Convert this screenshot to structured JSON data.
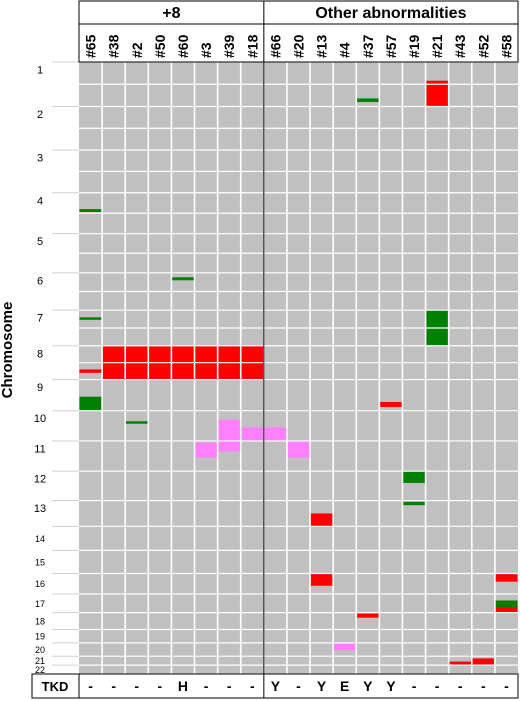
{
  "chart_data": {
    "type": "heatmap",
    "groups": [
      {
        "label": "+8",
        "samples": [
          "#65",
          "#38",
          "#2",
          "#50",
          "#60",
          "#3",
          "#39",
          "#18"
        ]
      },
      {
        "label": "Other abnormalities",
        "samples": [
          "#66",
          "#20",
          "#13",
          "#4",
          "#37",
          "#57",
          "#19",
          "#21",
          "#43",
          "#52",
          "#58"
        ]
      }
    ],
    "ylabel": "Chromosome",
    "chromosomes": [
      "1",
      "2",
      "3",
      "4",
      "5",
      "6",
      "7",
      "8",
      "9",
      "10",
      "11",
      "12",
      "13",
      "14",
      "15",
      "16",
      "17",
      "18",
      "19",
      "20",
      "21",
      "22"
    ],
    "tkd_label": "TKD",
    "tkd_values": [
      "-",
      "-",
      "-",
      "-",
      "H",
      "-",
      "-",
      "-",
      "Y",
      "-",
      "Y",
      "E",
      "Y",
      "Y",
      "-",
      "-",
      "-",
      "-",
      "-"
    ],
    "colors": {
      "background": "#c0c0c0",
      "grid": "#ffffff",
      "gain": "#ff0000",
      "loss": "#008000",
      "cn_loh": "#ff80ff"
    },
    "segments": [
      {
        "sample": "#65",
        "chr": "4",
        "from": 0.4,
        "to": 0.47,
        "type": "loss"
      },
      {
        "sample": "#65",
        "chr": "7",
        "from": 0.2,
        "to": 0.27,
        "type": "loss"
      },
      {
        "sample": "#65",
        "chr": "8",
        "from": 0.7,
        "to": 0.8,
        "type": "gain"
      },
      {
        "sample": "#65",
        "chr": "9",
        "from": 0.55,
        "to": 1.0,
        "type": "loss"
      },
      {
        "sample": "#38",
        "chr": "8",
        "from": 0,
        "to": 1,
        "type": "gain"
      },
      {
        "sample": "#2",
        "chr": "8",
        "from": 0,
        "to": 1,
        "type": "gain"
      },
      {
        "sample": "#2",
        "chr": "10",
        "from": 0.35,
        "to": 0.43,
        "type": "loss"
      },
      {
        "sample": "#50",
        "chr": "8",
        "from": 0,
        "to": 1,
        "type": "gain"
      },
      {
        "sample": "#60",
        "chr": "8",
        "from": 0,
        "to": 1,
        "type": "gain"
      },
      {
        "sample": "#60",
        "chr": "6",
        "from": 0.12,
        "to": 0.2,
        "type": "loss"
      },
      {
        "sample": "#3",
        "chr": "8",
        "from": 0,
        "to": 1,
        "type": "gain"
      },
      {
        "sample": "#3",
        "chr": "11",
        "from": 0.05,
        "to": 0.55,
        "type": "cn_loh"
      },
      {
        "sample": "#39",
        "chr": "8",
        "from": 0,
        "to": 1,
        "type": "gain"
      },
      {
        "sample": "#39",
        "chr": "10",
        "from": 0.3,
        "to": 1.0,
        "type": "cn_loh"
      },
      {
        "sample": "#39",
        "chr": "11",
        "from": 0.0,
        "to": 0.35,
        "type": "cn_loh"
      },
      {
        "sample": "#18",
        "chr": "8",
        "from": 0,
        "to": 1,
        "type": "gain"
      },
      {
        "sample": "#18",
        "chr": "10",
        "from": 0.55,
        "to": 1.0,
        "type": "cn_loh"
      },
      {
        "sample": "#66",
        "chr": "10",
        "from": 0.55,
        "to": 1.0,
        "type": "cn_loh"
      },
      {
        "sample": "#20",
        "chr": "11",
        "from": 0.0,
        "to": 0.55,
        "type": "cn_loh"
      },
      {
        "sample": "#13",
        "chr": "13",
        "from": 0.5,
        "to": 1.0,
        "type": "gain"
      },
      {
        "sample": "#13",
        "chr": "16",
        "from": 0.0,
        "to": 0.6,
        "type": "gain"
      },
      {
        "sample": "#4",
        "chr": "20",
        "from": 0.0,
        "to": 0.55,
        "type": "cn_loh"
      },
      {
        "sample": "#37",
        "chr": "1",
        "from": 0.82,
        "to": 0.9,
        "type": "loss"
      },
      {
        "sample": "#37",
        "chr": "18",
        "from": 0.05,
        "to": 0.3,
        "type": "gain"
      },
      {
        "sample": "#57",
        "chr": "9",
        "from": 0.72,
        "to": 0.88,
        "type": "gain"
      },
      {
        "sample": "#19",
        "chr": "12",
        "from": 0.0,
        "to": 0.4,
        "type": "loss"
      },
      {
        "sample": "#19",
        "chr": "13",
        "from": 0.05,
        "to": 0.18,
        "type": "loss"
      },
      {
        "sample": "#21",
        "chr": "1",
        "from": 0.42,
        "to": 1.0,
        "type": "gain"
      },
      {
        "sample": "#21",
        "chr": "7",
        "from": 0.0,
        "to": 1.0,
        "type": "loss"
      },
      {
        "sample": "#43",
        "chr": "21",
        "from": 0.6,
        "to": 1.0,
        "type": "gain"
      },
      {
        "sample": "#52",
        "chr": "21",
        "from": 0.25,
        "to": 1.0,
        "type": "gain"
      },
      {
        "sample": "#58",
        "chr": "16",
        "from": 0.0,
        "to": 0.4,
        "type": "gain"
      },
      {
        "sample": "#58",
        "chr": "17",
        "from": 0.35,
        "to": 0.7,
        "type": "loss"
      },
      {
        "sample": "#58",
        "chr": "17",
        "from": 0.7,
        "to": 1.0,
        "type": "gain"
      }
    ]
  }
}
